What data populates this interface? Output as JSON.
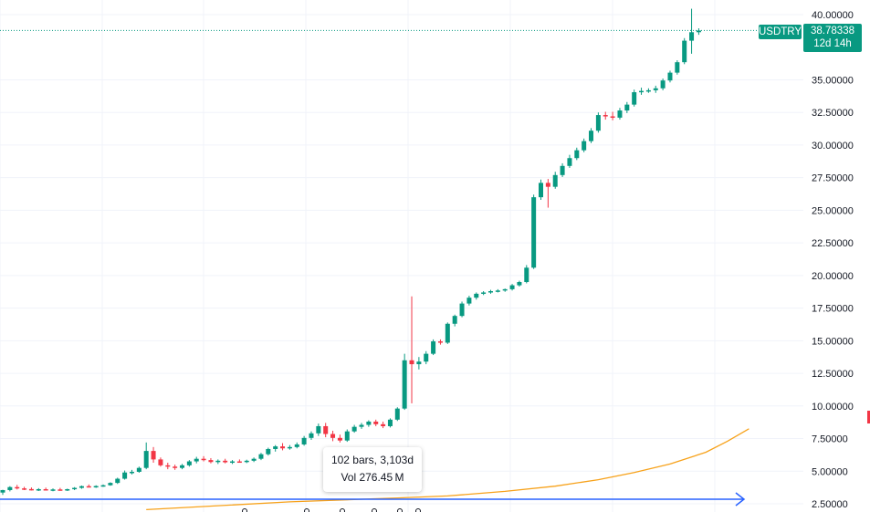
{
  "chart_data": {
    "type": "candlestick",
    "symbol": "USDTRY",
    "last_price": "38.78338",
    "countdown": "12d 14h",
    "ylim": [
      2.5,
      40
    ],
    "ytick_labels": [
      "40.00000",
      "35.00000",
      "32.50000",
      "30.00000",
      "27.50000",
      "25.00000",
      "22.50000",
      "20.00000",
      "17.50000",
      "15.00000",
      "12.50000",
      "10.00000",
      "7.50000",
      "5.00000",
      "2.50000"
    ],
    "ytick_values": [
      40,
      35,
      32.5,
      30,
      27.5,
      25,
      22.5,
      20,
      17.5,
      15,
      12.5,
      10,
      7.5,
      5,
      2.5
    ],
    "gridlines": true,
    "candles": [
      {
        "o": 3.36,
        "h": 3.58,
        "l": 3.18,
        "c": 3.55
      },
      {
        "o": 3.55,
        "h": 3.85,
        "l": 3.45,
        "c": 3.78
      },
      {
        "o": 3.78,
        "h": 3.95,
        "l": 3.6,
        "c": 3.68
      },
      {
        "o": 3.68,
        "h": 3.8,
        "l": 3.55,
        "c": 3.63
      },
      {
        "o": 3.63,
        "h": 3.75,
        "l": 3.52,
        "c": 3.58
      },
      {
        "o": 3.58,
        "h": 3.7,
        "l": 3.48,
        "c": 3.62
      },
      {
        "o": 3.62,
        "h": 3.74,
        "l": 3.52,
        "c": 3.55
      },
      {
        "o": 3.55,
        "h": 3.68,
        "l": 3.46,
        "c": 3.6
      },
      {
        "o": 3.6,
        "h": 3.72,
        "l": 3.5,
        "c": 3.57
      },
      {
        "o": 3.57,
        "h": 3.66,
        "l": 3.48,
        "c": 3.62
      },
      {
        "o": 3.62,
        "h": 3.78,
        "l": 3.55,
        "c": 3.72
      },
      {
        "o": 3.72,
        "h": 3.9,
        "l": 3.65,
        "c": 3.85
      },
      {
        "o": 3.85,
        "h": 3.98,
        "l": 3.75,
        "c": 3.8
      },
      {
        "o": 3.8,
        "h": 3.92,
        "l": 3.72,
        "c": 3.86
      },
      {
        "o": 3.86,
        "h": 3.98,
        "l": 3.8,
        "c": 3.92
      },
      {
        "o": 3.92,
        "h": 4.15,
        "l": 3.88,
        "c": 4.1
      },
      {
        "o": 4.1,
        "h": 4.5,
        "l": 4.02,
        "c": 4.42
      },
      {
        "o": 4.42,
        "h": 5.05,
        "l": 4.35,
        "c": 4.9
      },
      {
        "o": 4.9,
        "h": 5.1,
        "l": 4.75,
        "c": 4.95
      },
      {
        "o": 4.95,
        "h": 5.35,
        "l": 4.88,
        "c": 5.25
      },
      {
        "o": 5.25,
        "h": 7.2,
        "l": 5.15,
        "c": 6.55
      },
      {
        "o": 6.55,
        "h": 6.85,
        "l": 5.65,
        "c": 5.9
      },
      {
        "o": 5.9,
        "h": 6.05,
        "l": 5.35,
        "c": 5.45
      },
      {
        "o": 5.45,
        "h": 5.65,
        "l": 5.15,
        "c": 5.35
      },
      {
        "o": 5.35,
        "h": 5.5,
        "l": 5.1,
        "c": 5.25
      },
      {
        "o": 5.25,
        "h": 5.55,
        "l": 5.15,
        "c": 5.45
      },
      {
        "o": 5.45,
        "h": 5.85,
        "l": 5.35,
        "c": 5.75
      },
      {
        "o": 5.75,
        "h": 6.1,
        "l": 5.6,
        "c": 5.95
      },
      {
        "o": 5.95,
        "h": 6.15,
        "l": 5.75,
        "c": 5.85
      },
      {
        "o": 5.85,
        "h": 6.0,
        "l": 5.6,
        "c": 5.7
      },
      {
        "o": 5.7,
        "h": 5.9,
        "l": 5.55,
        "c": 5.8
      },
      {
        "o": 5.8,
        "h": 5.95,
        "l": 5.6,
        "c": 5.68
      },
      {
        "o": 5.68,
        "h": 5.85,
        "l": 5.55,
        "c": 5.75
      },
      {
        "o": 5.75,
        "h": 5.9,
        "l": 5.65,
        "c": 5.72
      },
      {
        "o": 5.72,
        "h": 5.88,
        "l": 5.62,
        "c": 5.8
      },
      {
        "o": 5.8,
        "h": 6.05,
        "l": 5.7,
        "c": 5.95
      },
      {
        "o": 5.95,
        "h": 6.4,
        "l": 5.85,
        "c": 6.3
      },
      {
        "o": 6.3,
        "h": 6.8,
        "l": 6.2,
        "c": 6.7
      },
      {
        "o": 6.7,
        "h": 7.0,
        "l": 6.5,
        "c": 6.9
      },
      {
        "o": 6.9,
        "h": 7.15,
        "l": 6.6,
        "c": 6.75
      },
      {
        "o": 6.75,
        "h": 7.0,
        "l": 6.65,
        "c": 6.85
      },
      {
        "o": 6.85,
        "h": 7.2,
        "l": 6.75,
        "c": 7.05
      },
      {
        "o": 7.05,
        "h": 7.7,
        "l": 6.95,
        "c": 7.55
      },
      {
        "o": 7.55,
        "h": 8.05,
        "l": 7.4,
        "c": 7.9
      },
      {
        "o": 7.9,
        "h": 8.65,
        "l": 7.7,
        "c": 8.45
      },
      {
        "o": 8.45,
        "h": 8.7,
        "l": 7.6,
        "c": 7.85
      },
      {
        "o": 7.85,
        "h": 8.1,
        "l": 7.3,
        "c": 7.55
      },
      {
        "o": 7.55,
        "h": 7.8,
        "l": 7.2,
        "c": 7.35
      },
      {
        "o": 7.35,
        "h": 8.2,
        "l": 7.25,
        "c": 8.05
      },
      {
        "o": 8.05,
        "h": 8.55,
        "l": 7.95,
        "c": 8.4
      },
      {
        "o": 8.4,
        "h": 8.7,
        "l": 8.25,
        "c": 8.55
      },
      {
        "o": 8.55,
        "h": 8.9,
        "l": 8.4,
        "c": 8.8
      },
      {
        "o": 8.8,
        "h": 8.95,
        "l": 8.45,
        "c": 8.6
      },
      {
        "o": 8.6,
        "h": 8.8,
        "l": 8.3,
        "c": 8.45
      },
      {
        "o": 8.45,
        "h": 9.05,
        "l": 8.35,
        "c": 8.95
      },
      {
        "o": 8.95,
        "h": 9.9,
        "l": 8.85,
        "c": 9.8
      },
      {
        "o": 9.8,
        "h": 14.0,
        "l": 9.7,
        "c": 13.5
      },
      {
        "o": 13.5,
        "h": 18.4,
        "l": 10.2,
        "c": 13.2
      },
      {
        "o": 13.2,
        "h": 13.75,
        "l": 12.8,
        "c": 13.4
      },
      {
        "o": 13.4,
        "h": 14.2,
        "l": 13.2,
        "c": 14.0
      },
      {
        "o": 14.0,
        "h": 15.1,
        "l": 13.9,
        "c": 14.95
      },
      {
        "o": 14.95,
        "h": 15.1,
        "l": 14.7,
        "c": 14.85
      },
      {
        "o": 14.85,
        "h": 16.4,
        "l": 14.75,
        "c": 16.3
      },
      {
        "o": 16.3,
        "h": 17.0,
        "l": 16.1,
        "c": 16.9
      },
      {
        "o": 16.9,
        "h": 18.0,
        "l": 16.8,
        "c": 17.85
      },
      {
        "o": 17.85,
        "h": 18.45,
        "l": 17.7,
        "c": 18.3
      },
      {
        "o": 18.3,
        "h": 18.7,
        "l": 18.15,
        "c": 18.6
      },
      {
        "o": 18.6,
        "h": 18.8,
        "l": 18.5,
        "c": 18.7
      },
      {
        "o": 18.7,
        "h": 18.9,
        "l": 18.6,
        "c": 18.8
      },
      {
        "o": 18.8,
        "h": 18.95,
        "l": 18.7,
        "c": 18.85
      },
      {
        "o": 18.85,
        "h": 19.0,
        "l": 18.75,
        "c": 18.95
      },
      {
        "o": 18.95,
        "h": 19.35,
        "l": 18.85,
        "c": 19.25
      },
      {
        "o": 19.25,
        "h": 19.6,
        "l": 19.15,
        "c": 19.5
      },
      {
        "o": 19.5,
        "h": 20.8,
        "l": 19.4,
        "c": 20.6
      },
      {
        "o": 20.6,
        "h": 26.2,
        "l": 20.5,
        "c": 26.0
      },
      {
        "o": 26.0,
        "h": 27.35,
        "l": 25.8,
        "c": 27.1
      },
      {
        "o": 27.1,
        "h": 27.4,
        "l": 25.2,
        "c": 26.8
      },
      {
        "o": 26.8,
        "h": 27.95,
        "l": 26.65,
        "c": 27.7
      },
      {
        "o": 27.7,
        "h": 28.6,
        "l": 27.55,
        "c": 28.4
      },
      {
        "o": 28.4,
        "h": 29.25,
        "l": 28.25,
        "c": 29.0
      },
      {
        "o": 29.0,
        "h": 29.8,
        "l": 28.85,
        "c": 29.6
      },
      {
        "o": 29.6,
        "h": 30.5,
        "l": 29.45,
        "c": 30.3
      },
      {
        "o": 30.3,
        "h": 31.3,
        "l": 30.15,
        "c": 31.1
      },
      {
        "o": 31.1,
        "h": 32.5,
        "l": 30.95,
        "c": 32.3
      },
      {
        "o": 32.3,
        "h": 32.55,
        "l": 31.95,
        "c": 32.2
      },
      {
        "o": 32.2,
        "h": 32.55,
        "l": 31.9,
        "c": 32.1
      },
      {
        "o": 32.1,
        "h": 32.85,
        "l": 31.95,
        "c": 32.65
      },
      {
        "o": 32.65,
        "h": 33.3,
        "l": 32.45,
        "c": 33.1
      },
      {
        "o": 33.1,
        "h": 34.25,
        "l": 32.95,
        "c": 34.05
      },
      {
        "o": 34.05,
        "h": 34.4,
        "l": 33.85,
        "c": 34.15
      },
      {
        "o": 34.15,
        "h": 34.35,
        "l": 34.0,
        "c": 34.2
      },
      {
        "o": 34.2,
        "h": 34.55,
        "l": 34.0,
        "c": 34.35
      },
      {
        "o": 34.35,
        "h": 35.1,
        "l": 34.2,
        "c": 34.95
      },
      {
        "o": 34.95,
        "h": 35.7,
        "l": 34.8,
        "c": 35.55
      },
      {
        "o": 35.55,
        "h": 36.5,
        "l": 35.4,
        "c": 36.35
      },
      {
        "o": 36.35,
        "h": 38.2,
        "l": 36.2,
        "c": 38.0
      },
      {
        "o": 38.0,
        "h": 40.45,
        "l": 37.0,
        "c": 38.65
      },
      {
        "o": 38.65,
        "h": 38.95,
        "l": 38.45,
        "c": 38.78
      }
    ],
    "moving_average": [
      {
        "bar": 20,
        "value": 2.05
      },
      {
        "bar": 40,
        "value": 2.65
      },
      {
        "bar": 55,
        "value": 2.95
      },
      {
        "bar": 62,
        "value": 3.1
      },
      {
        "bar": 70,
        "value": 3.45
      },
      {
        "bar": 77,
        "value": 3.85
      },
      {
        "bar": 83,
        "value": 4.35
      },
      {
        "bar": 88,
        "value": 4.9
      },
      {
        "bar": 93,
        "value": 5.55
      },
      {
        "bar": 98,
        "value": 6.45
      },
      {
        "bar": 101,
        "value": 7.3
      },
      {
        "bar": 104,
        "value": 8.25
      }
    ],
    "tooltip": {
      "bars": "102 bars, 3,103d",
      "volume": "Vol 276.45 M"
    },
    "colors": {
      "up": "#089981",
      "down": "#f23645",
      "ma": "#f7a21b",
      "range": "#2962ff",
      "grid": "#f0f3fa",
      "price_line": "#089981"
    }
  }
}
